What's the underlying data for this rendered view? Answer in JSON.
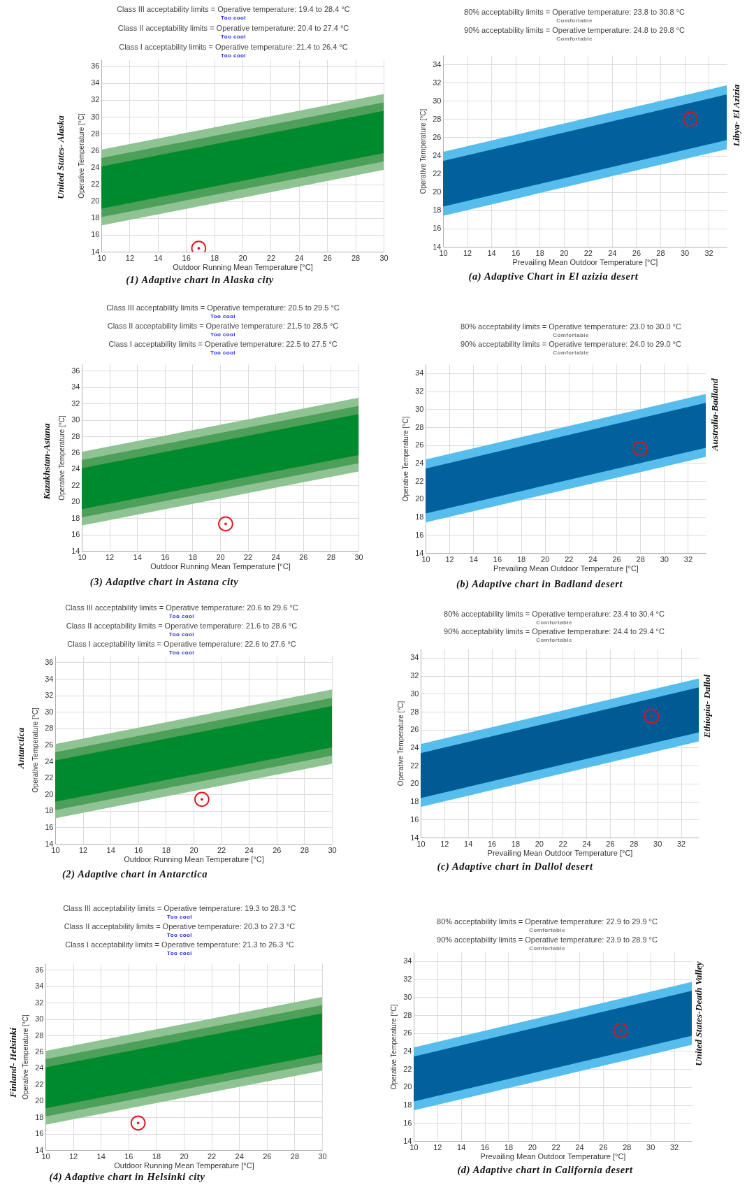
{
  "chart_data": [
    {
      "type": "area",
      "title": "(1) Adaptive chart in Alaska city",
      "subtitle": "United States- Alaska",
      "xlabel": "Outdoor Running Mean Temperature [°C]",
      "ylabel": "Operative Temperature [°C]",
      "annotations": [
        "Class III acceptability limits = Operative temperature: 19.4 to 28.4 °C",
        "Too cool",
        "Class II acceptability limits = Operative temperature: 20.4 to 27.4 °C",
        "Too cool",
        "Class I acceptability limits = Operative temperature: 21.4 to 26.4 °C",
        "Too cool"
      ],
      "xlim": [
        10,
        30
      ],
      "ylim": [
        14,
        36.8
      ],
      "xticks": [
        10,
        12,
        14,
        16,
        18,
        20,
        22,
        24,
        26,
        28,
        30
      ],
      "yticks": [
        14,
        16,
        18,
        20,
        22,
        24,
        26,
        28,
        30,
        32,
        34,
        36
      ],
      "grid": true,
      "series": [
        {
          "type": "area",
          "color": "#8fc393",
          "x": [
            10,
            30
          ],
          "values": [
            null,
            null
          ],
          "lower": [
            17.1,
            23.7
          ],
          "upper": [
            26.1,
            32.7
          ]
        },
        {
          "type": "area",
          "color": "#4d9f5a",
          "x": [
            10,
            30
          ],
          "values": [
            null,
            null
          ],
          "lower": [
            18.1,
            24.7
          ],
          "upper": [
            25.1,
            31.7
          ]
        },
        {
          "type": "area",
          "color": "#008a2e",
          "x": [
            10,
            30
          ],
          "values": [
            null,
            null
          ],
          "lower": [
            19.1,
            25.7
          ],
          "upper": [
            24.1,
            30.7
          ]
        },
        {
          "type": "scatter",
          "color": "#e0121a",
          "x": [
            16.9
          ],
          "values": [
            14.4
          ],
          "marker": "circle"
        }
      ]
    },
    {
      "type": "area",
      "title": "(a) Adaptive Chart in El azizia desert",
      "subtitle": "Libya- El Azizia",
      "xlabel": "Prevailing Mean Outdoor Temperature [°C]",
      "ylabel": "Operative Temperature [°C]",
      "annotations": [
        "80% acceptability limits = Operative temperature: 23.8 to 30.8 °C",
        "Comfortable",
        "90% acceptability limits = Operative temperature: 24.8 to 29.8 °C",
        "Comfortable"
      ],
      "xlim": [
        10,
        33.5
      ],
      "ylim": [
        14,
        35
      ],
      "xticks": [
        10,
        12,
        14,
        16,
        18,
        20,
        22,
        24,
        26,
        28,
        30,
        32
      ],
      "yticks": [
        14,
        16,
        18,
        20,
        22,
        24,
        26,
        28,
        30,
        32,
        34
      ],
      "grid": true,
      "series": [
        {
          "type": "area",
          "color": "#56bdec",
          "x": [
            10,
            33.5
          ],
          "values": [
            null,
            null
          ],
          "lower": [
            17.4,
            24.7
          ],
          "upper": [
            24.4,
            31.7
          ]
        },
        {
          "type": "area",
          "color": "#02619c",
          "x": [
            10,
            33.5
          ],
          "values": [
            null,
            null
          ],
          "lower": [
            18.4,
            25.7
          ],
          "upper": [
            23.4,
            30.7
          ]
        },
        {
          "type": "scatter",
          "color": "#e0121a",
          "x": [
            30.5
          ],
          "values": [
            28.0
          ],
          "marker": "circle"
        }
      ]
    },
    {
      "type": "area",
      "title": "(3) Adaptive chart in Astana city",
      "subtitle": "Kazakhstan-Astana",
      "xlabel": "Outdoor Running Mean Temperature [°C]",
      "ylabel": "Operative Temperature [°C]",
      "annotations": [
        "Class III acceptability limits = Operative temperature: 20.5 to 29.5 °C",
        "Too cool",
        "Class II acceptability limits = Operative temperature: 21.5 to 28.5 °C",
        "Too cool",
        "Class I acceptability limits = Operative temperature: 22.5 to 27.5 °C",
        "Too cool"
      ],
      "xlim": [
        10,
        30
      ],
      "ylim": [
        14,
        36.8
      ],
      "xticks": [
        10,
        12,
        14,
        16,
        18,
        20,
        22,
        24,
        26,
        28,
        30
      ],
      "yticks": [
        14,
        16,
        18,
        20,
        22,
        24,
        26,
        28,
        30,
        32,
        34,
        36
      ],
      "grid": true,
      "series": [
        {
          "type": "area",
          "color": "#8fc393",
          "x": [
            10,
            30
          ],
          "values": [
            null,
            null
          ],
          "lower": [
            17.1,
            23.7
          ],
          "upper": [
            26.1,
            32.7
          ]
        },
        {
          "type": "area",
          "color": "#4d9f5a",
          "x": [
            10,
            30
          ],
          "values": [
            null,
            null
          ],
          "lower": [
            18.1,
            24.7
          ],
          "upper": [
            25.1,
            31.7
          ]
        },
        {
          "type": "area",
          "color": "#008a2e",
          "x": [
            10,
            30
          ],
          "values": [
            null,
            null
          ],
          "lower": [
            19.1,
            25.7
          ],
          "upper": [
            24.1,
            30.7
          ]
        },
        {
          "type": "scatter",
          "color": "#e0121a",
          "x": [
            20.4
          ],
          "values": [
            17.3
          ],
          "marker": "circle"
        }
      ]
    },
    {
      "type": "area",
      "title": "(b) Adaptive chart in Badland desert",
      "subtitle": "Australia-Badland",
      "xlabel": "Prevailing Mean Outdoor Temperature [°C]",
      "ylabel": "Operative Temperature [°C]",
      "annotations": [
        "80% acceptability limits = Operative temperature: 23.0 to 30.0 °C",
        "Comfortable",
        "90% acceptability limits = Operative temperature: 24.0 to 29.0 °C",
        "Comfortable"
      ],
      "xlim": [
        10,
        33.5
      ],
      "ylim": [
        14,
        35
      ],
      "xticks": [
        10,
        12,
        14,
        16,
        18,
        20,
        22,
        24,
        26,
        28,
        30,
        32
      ],
      "yticks": [
        14,
        16,
        18,
        20,
        22,
        24,
        26,
        28,
        30,
        32,
        34
      ],
      "grid": true,
      "series": [
        {
          "type": "area",
          "color": "#56bdec",
          "x": [
            10,
            33.5
          ],
          "values": [
            null,
            null
          ],
          "lower": [
            17.4,
            24.7
          ],
          "upper": [
            24.4,
            31.7
          ]
        },
        {
          "type": "area",
          "color": "#02619c",
          "x": [
            10,
            33.5
          ],
          "values": [
            null,
            null
          ],
          "lower": [
            18.4,
            25.7
          ],
          "upper": [
            23.4,
            30.7
          ]
        },
        {
          "type": "scatter",
          "color": "#e0121a",
          "x": [
            28.0
          ],
          "values": [
            25.6
          ],
          "marker": "circle"
        }
      ]
    },
    {
      "type": "area",
      "title": "(2) Adaptive chart in Antarctica",
      "subtitle": "Antarctica",
      "xlabel": "Outdoor Running Mean Temperature [°C]",
      "ylabel": "Operative Temperature [°C]",
      "annotations": [
        "Class III acceptability limits = Operative temperature: 20.6 to 29.6 °C",
        "Too cool",
        "Class II acceptability limits = Operative temperature: 21.6 to 28.6 °C",
        "Too cool",
        "Class I acceptability limits = Operative temperature: 22.6 to 27.6 °C",
        "Too cool"
      ],
      "xlim": [
        10,
        30
      ],
      "ylim": [
        14,
        36.8
      ],
      "xticks": [
        10,
        12,
        14,
        16,
        18,
        20,
        22,
        24,
        26,
        28,
        30
      ],
      "yticks": [
        14,
        16,
        18,
        20,
        22,
        24,
        26,
        28,
        30,
        32,
        34,
        36
      ],
      "grid": true,
      "series": [
        {
          "type": "area",
          "color": "#8fc393",
          "x": [
            10,
            30
          ],
          "values": [
            null,
            null
          ],
          "lower": [
            17.1,
            23.7
          ],
          "upper": [
            26.1,
            32.7
          ]
        },
        {
          "type": "area",
          "color": "#4d9f5a",
          "x": [
            10,
            30
          ],
          "values": [
            null,
            null
          ],
          "lower": [
            18.1,
            24.7
          ],
          "upper": [
            25.1,
            31.7
          ]
        },
        {
          "type": "area",
          "color": "#008a2e",
          "x": [
            10,
            30
          ],
          "values": [
            null,
            null
          ],
          "lower": [
            19.1,
            25.7
          ],
          "upper": [
            24.1,
            30.7
          ]
        },
        {
          "type": "scatter",
          "color": "#e0121a",
          "x": [
            20.6
          ],
          "values": [
            19.4
          ],
          "marker": "circle"
        }
      ]
    },
    {
      "type": "area",
      "title": "(c) Adaptive chart in Dallol desert",
      "subtitle": "Ethiopia- Dallol",
      "xlabel": "Prevailing Mean Outdoor Temperature [°C]",
      "ylabel": "Operative Temperature [°C]",
      "annotations": [
        "80% acceptability limits = Operative temperature: 23.4 to 30.4 °C",
        "Comfortable",
        "90% acceptability limits = Operative temperature: 24.4 to 29.4 °C",
        "Comfortable"
      ],
      "xlim": [
        10,
        33.5
      ],
      "ylim": [
        14,
        35
      ],
      "xticks": [
        10,
        12,
        14,
        16,
        18,
        20,
        22,
        24,
        26,
        28,
        30,
        32
      ],
      "yticks": [
        14,
        16,
        18,
        20,
        22,
        24,
        26,
        28,
        30,
        32,
        34
      ],
      "grid": true,
      "series": [
        {
          "type": "area",
          "color": "#56bdec",
          "x": [
            10,
            33.5
          ],
          "values": [
            null,
            null
          ],
          "lower": [
            17.4,
            24.7
          ],
          "upper": [
            24.4,
            31.7
          ]
        },
        {
          "type": "area",
          "color": "#005a94",
          "x": [
            10,
            33.5
          ],
          "values": [
            null,
            null
          ],
          "lower": [
            18.4,
            25.7
          ],
          "upper": [
            23.4,
            30.7
          ]
        },
        {
          "type": "scatter",
          "color": "#e0121a",
          "x": [
            29.5
          ],
          "values": [
            27.5
          ],
          "marker": "circle"
        }
      ]
    },
    {
      "type": "area",
      "title": "(4) Adaptive chart in Helsinki city",
      "subtitle": "Finland- Helsinki",
      "xlabel": "Outdoor Running Mean Temperature [°C]",
      "ylabel": "Operative Temperature [°C]",
      "annotations": [
        "Class III acceptability limits = Operative temperature: 19.3 to 28.3 °C",
        "Too cool",
        "Class II acceptability limits = Operative temperature: 20.3 to 27.3 °C",
        "Too cool",
        "Class I acceptability limits = Operative temperature: 21.3 to 26.3 °C",
        "Too cool"
      ],
      "xlim": [
        10,
        30
      ],
      "ylim": [
        14,
        36.8
      ],
      "xticks": [
        10,
        12,
        14,
        16,
        18,
        20,
        22,
        24,
        26,
        28,
        30
      ],
      "yticks": [
        14,
        16,
        18,
        20,
        22,
        24,
        26,
        28,
        30,
        32,
        34,
        36
      ],
      "grid": true,
      "series": [
        {
          "type": "area",
          "color": "#8fc393",
          "x": [
            10,
            30
          ],
          "values": [
            null,
            null
          ],
          "lower": [
            17.1,
            23.7
          ],
          "upper": [
            26.1,
            32.7
          ]
        },
        {
          "type": "area",
          "color": "#4d9f5a",
          "x": [
            10,
            30
          ],
          "values": [
            null,
            null
          ],
          "lower": [
            18.1,
            24.7
          ],
          "upper": [
            25.1,
            31.7
          ]
        },
        {
          "type": "area",
          "color": "#008a2e",
          "x": [
            10,
            30
          ],
          "values": [
            null,
            null
          ],
          "lower": [
            19.1,
            25.7
          ],
          "upper": [
            24.1,
            30.7
          ]
        },
        {
          "type": "scatter",
          "color": "#e0121a",
          "x": [
            16.7
          ],
          "values": [
            17.3
          ],
          "marker": "circle"
        }
      ]
    },
    {
      "type": "area",
      "title": "(d) Adaptive chart in California desert",
      "subtitle": "United States-Death Valley",
      "xlabel": "Prevailing Mean Outdoor Temperature [°C]",
      "ylabel": "Operative Temperature [°C]",
      "annotations": [
        "80% acceptability limits = Operative temperature: 22.9 to 29.9 °C",
        "Comfortable",
        "90% acceptability limits = Operative temperature: 23.9 to 28.9 °C",
        "Comfortable"
      ],
      "xlim": [
        10,
        33.5
      ],
      "ylim": [
        14,
        35
      ],
      "xticks": [
        10,
        12,
        14,
        16,
        18,
        20,
        22,
        24,
        26,
        28,
        30,
        32
      ],
      "yticks": [
        14,
        16,
        18,
        20,
        22,
        24,
        26,
        28,
        30,
        32,
        34
      ],
      "grid": true,
      "series": [
        {
          "type": "area",
          "color": "#56bdec",
          "x": [
            10,
            33.5
          ],
          "values": [
            null,
            null
          ],
          "lower": [
            17.4,
            24.7
          ],
          "upper": [
            24.4,
            31.7
          ]
        },
        {
          "type": "area",
          "color": "#02619c",
          "x": [
            10,
            33.5
          ],
          "values": [
            null,
            null
          ],
          "lower": [
            18.4,
            25.7
          ],
          "upper": [
            23.4,
            30.7
          ]
        },
        {
          "type": "scatter",
          "color": "#e0121a",
          "x": [
            27.5
          ],
          "values": [
            26.3
          ],
          "marker": "circle"
        }
      ]
    }
  ]
}
